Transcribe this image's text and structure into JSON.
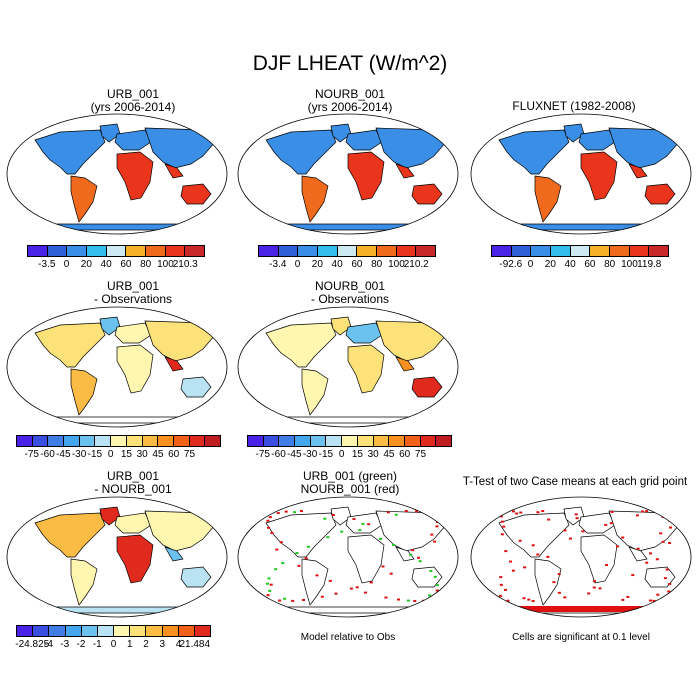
{
  "title": "DJF LHEAT (W/m^2)",
  "panels": {
    "p1": {
      "line1": "URB_001",
      "line2": "(yrs 2006-2014)"
    },
    "p2": {
      "line1": "NOURB_001",
      "line2": "(yrs 2006-2014)"
    },
    "p3": {
      "line1": "FLUXNET (1982-2008)",
      "line2": ""
    },
    "p4": {
      "line1": "URB_001",
      "line2": "- Observations"
    },
    "p5": {
      "line1": "NOURB_001",
      "line2": "- Observations"
    },
    "p7": {
      "line1": "URB_001",
      "line2": "- NOURB_001"
    },
    "p8": {
      "line1": "URB_001 (green)",
      "line2": "NOURB_001 (red)"
    },
    "p9": {
      "line1": "T-Test of two Case means at each grid point",
      "line2": ""
    }
  },
  "colorbars": {
    "cb1": {
      "ticks": [
        "-3.5",
        "0",
        "20",
        "40",
        "60",
        "80",
        "100",
        "210.3"
      ],
      "colors": [
        "#4a23e6",
        "#2f5fd9",
        "#3b8ee6",
        "#33bdec",
        "#cde9f2",
        "#f7b02a",
        "#f06a1e",
        "#e8351c",
        "#c8282a"
      ]
    },
    "cb2": {
      "ticks": [
        "-3.4",
        "0",
        "20",
        "40",
        "60",
        "80",
        "100",
        "210.2"
      ],
      "colors": [
        "#4a23e6",
        "#2f5fd9",
        "#3b8ee6",
        "#33bdec",
        "#cde9f2",
        "#f7b02a",
        "#f06a1e",
        "#e8351c",
        "#c8282a"
      ]
    },
    "cb3": {
      "ticks": [
        "-92.6",
        "0",
        "20",
        "40",
        "60",
        "80",
        "100",
        "119.8"
      ],
      "colors": [
        "#4a23e6",
        "#2f5fd9",
        "#3b8ee6",
        "#33bdec",
        "#cde9f2",
        "#f7b02a",
        "#f06a1e",
        "#e8351c",
        "#c8282a"
      ]
    },
    "cb4": {
      "ticks": [
        "-75",
        "-60",
        "-45",
        "-30",
        "-15",
        "0",
        "15",
        "30",
        "45",
        "60",
        "75"
      ],
      "colors": [
        "#4a23e6",
        "#3a4fe0",
        "#3e7ee6",
        "#44a6ec",
        "#6cc2ef",
        "#b9e2f2",
        "#fff6b0",
        "#fde27a",
        "#fbbc45",
        "#f8911f",
        "#f2611a",
        "#e02a1e",
        "#c01d23"
      ]
    },
    "cb5": {
      "ticks": [
        "-75",
        "-60",
        "-45",
        "-30",
        "-15",
        "0",
        "15",
        "30",
        "45",
        "60",
        "75"
      ],
      "colors": [
        "#4a23e6",
        "#3a4fe0",
        "#3e7ee6",
        "#44a6ec",
        "#6cc2ef",
        "#b9e2f2",
        "#fff6b0",
        "#fde27a",
        "#fbbc45",
        "#f8911f",
        "#f2611a",
        "#e02a1e",
        "#c01d23"
      ]
    },
    "cb7": {
      "ticks": [
        "-24.825",
        "-4",
        "-3",
        "-2",
        "-1",
        "0",
        "1",
        "2",
        "3",
        "4",
        "21.484"
      ],
      "colors": [
        "#4a23e6",
        "#3a4fe0",
        "#3e7ee6",
        "#44a6ec",
        "#6cc2ef",
        "#b9e2f2",
        "#fff6b0",
        "#fde27a",
        "#fbbc45",
        "#f8911f",
        "#f2611a",
        "#e02a1e"
      ]
    }
  },
  "notes": {
    "p8": "Model relative to Obs",
    "p9": "Cells are significant at 0.1 level"
  },
  "legend_colors": {
    "ocean": "#ffffff",
    "coast": "#000000",
    "green": "#1ec81e",
    "red": "#e01010"
  }
}
